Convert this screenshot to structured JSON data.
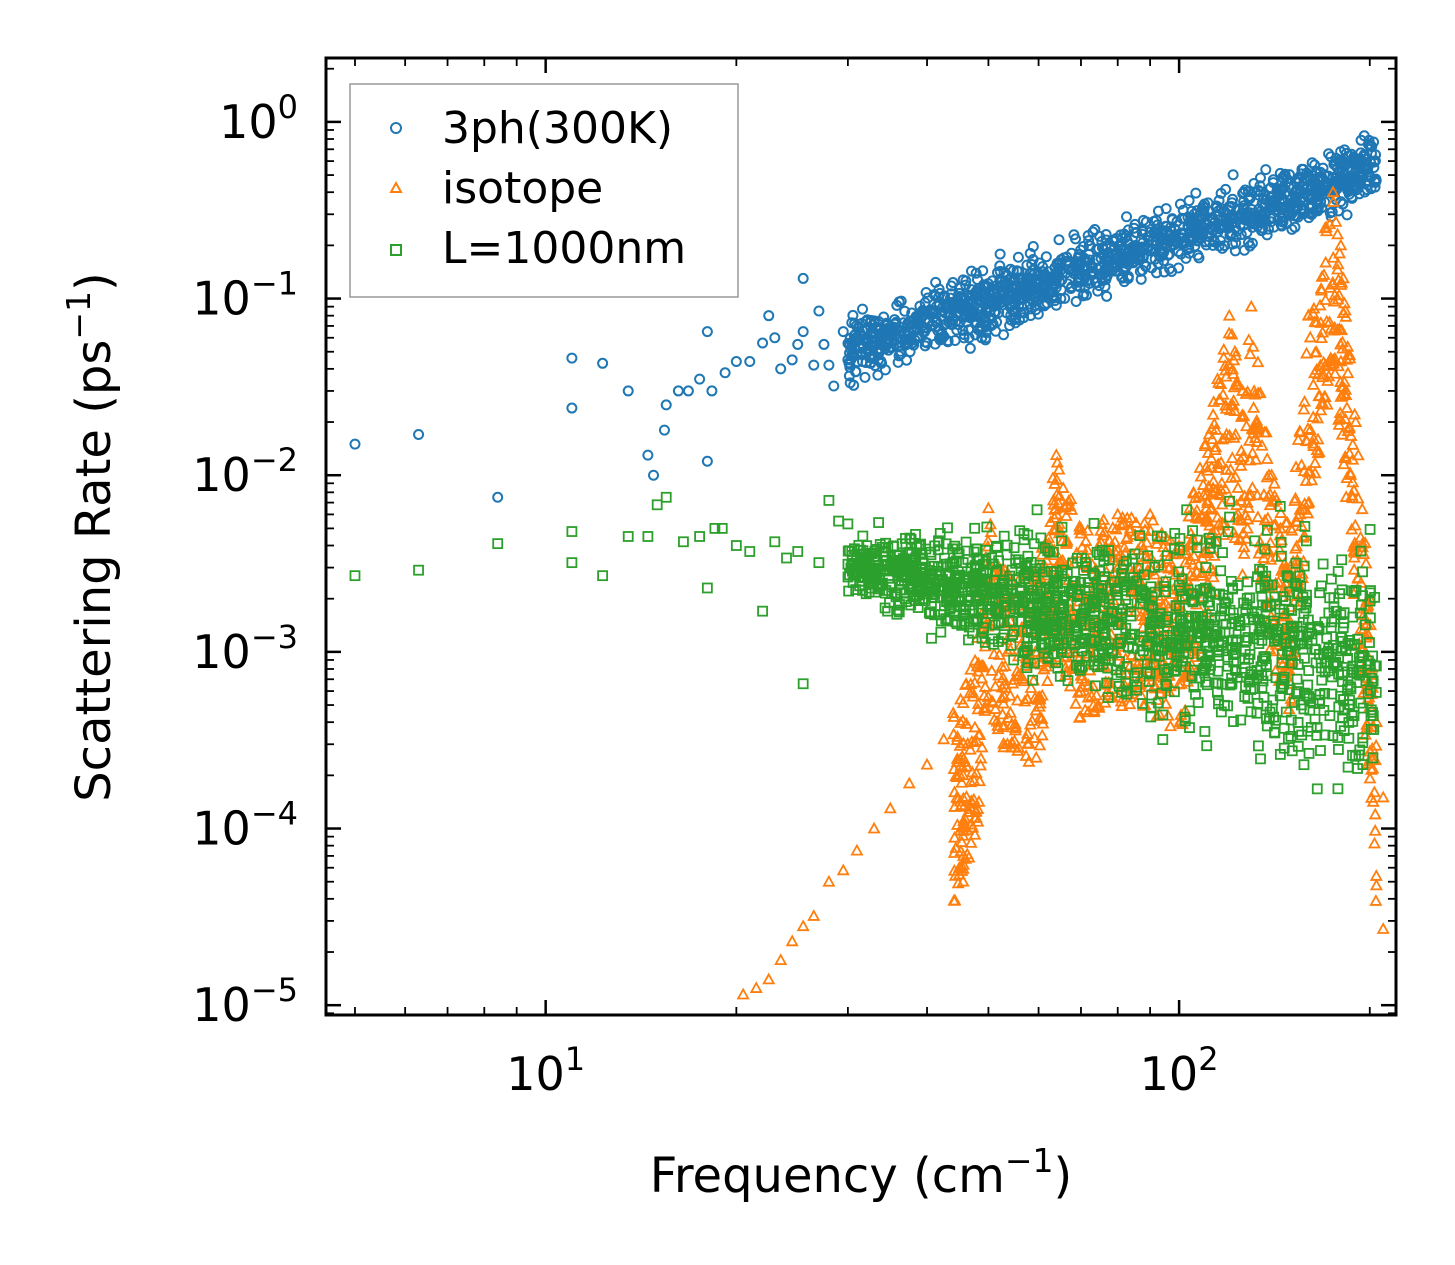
{
  "chart_data": {
    "type": "scatter",
    "xscale": "log",
    "yscale": "log",
    "xlabel": "Frequency (cm",
    "xlabel_sup": "−1",
    "xlabel_close": ")",
    "ylabel": "Scattering Rate (ps",
    "ylabel_sup": "−1",
    "ylabel_close": ")",
    "xlim": [
      4.5,
      220
    ],
    "ylim": [
      8.8e-06,
      2.3
    ],
    "x_ticks": [
      {
        "value": 10,
        "base": "10",
        "exp": "1"
      },
      {
        "value": 100,
        "base": "10",
        "exp": "2"
      }
    ],
    "y_ticks": [
      {
        "value": 1,
        "base": "10",
        "exp": "0"
      },
      {
        "value": 0.1,
        "base": "10",
        "exp": "−1"
      },
      {
        "value": 0.01,
        "base": "10",
        "exp": "−2"
      },
      {
        "value": 0.001,
        "base": "10",
        "exp": "−3"
      },
      {
        "value": 0.0001,
        "base": "10",
        "exp": "−4"
      },
      {
        "value": 1e-05,
        "base": "10",
        "exp": "−5"
      }
    ],
    "legend_position": "top-left",
    "series": [
      {
        "name": "3ph(300K)",
        "marker": "circle",
        "color": "#1f77b4",
        "points": [
          [
            5.0,
            0.015
          ],
          [
            6.3,
            0.017
          ],
          [
            8.4,
            0.0075
          ],
          [
            11,
            0.046
          ],
          [
            11,
            0.024
          ],
          [
            12.3,
            0.043
          ],
          [
            13.5,
            0.03
          ],
          [
            14.5,
            0.013
          ],
          [
            14.8,
            0.01
          ],
          [
            15.4,
            0.018
          ],
          [
            15.5,
            0.025
          ],
          [
            16.2,
            0.03
          ],
          [
            16.8,
            0.03
          ],
          [
            17.5,
            0.035
          ],
          [
            18,
            0.065
          ],
          [
            18,
            0.012
          ],
          [
            18.3,
            0.03
          ],
          [
            19.2,
            0.038
          ],
          [
            20,
            0.044
          ],
          [
            21,
            0.044
          ],
          [
            22,
            0.056
          ],
          [
            22.5,
            0.08
          ],
          [
            23,
            0.06
          ],
          [
            23.5,
            0.04
          ],
          [
            24.5,
            0.045
          ],
          [
            25,
            0.055
          ],
          [
            25.5,
            0.065
          ],
          [
            25.5,
            0.13
          ],
          [
            26.5,
            0.042
          ],
          [
            27,
            0.085
          ],
          [
            27.5,
            0.055
          ],
          [
            28,
            0.042
          ],
          [
            28.5,
            0.032
          ],
          [
            29.5,
            0.065
          ],
          [
            30,
            0.045
          ]
        ]
      },
      {
        "name": "isotope",
        "marker": "triangle",
        "color": "#ff7f0e",
        "points": [
          [
            20.5,
            1.15e-05
          ],
          [
            21.5,
            1.25e-05
          ],
          [
            22.5,
            1.4e-05
          ],
          [
            23.5,
            1.8e-05
          ],
          [
            24.5,
            2.3e-05
          ],
          [
            25.5,
            2.8e-05
          ],
          [
            26.5,
            3.2e-05
          ],
          [
            28,
            5e-05
          ],
          [
            29.5,
            5.8e-05
          ],
          [
            31,
            7.5e-05
          ],
          [
            33,
            0.0001
          ],
          [
            35,
            0.00013
          ],
          [
            37.5,
            0.00018
          ],
          [
            40,
            0.00023
          ],
          [
            42.5,
            0.00032
          ],
          [
            44,
            0.00045
          ],
          [
            46,
            0.00065
          ],
          [
            48,
            0.0012
          ],
          [
            50,
            0.0065
          ],
          [
            52,
            0.003
          ],
          [
            60,
            0.003
          ],
          [
            64,
            0.013
          ],
          [
            70,
            0.005
          ],
          [
            80,
            0.006
          ],
          [
            90,
            0.006
          ],
          [
            100,
            0.004
          ],
          [
            110,
            0.015
          ],
          [
            115,
            0.035
          ],
          [
            120,
            0.08
          ],
          [
            126,
            0.03
          ],
          [
            130,
            0.09
          ],
          [
            140,
            0.01
          ],
          [
            150,
            0.005
          ],
          [
            160,
            0.08
          ],
          [
            170,
            0.25
          ],
          [
            175,
            0.4
          ],
          [
            180,
            0.2
          ],
          [
            190,
            0.02
          ],
          [
            200,
            0.002
          ],
          [
            205,
            0.0004
          ],
          [
            210,
            0.00015
          ],
          [
            210,
            2.7e-05
          ]
        ]
      },
      {
        "name": "L=1000nm",
        "marker": "square",
        "color": "#2ca02c",
        "points": [
          [
            5.0,
            0.0027
          ],
          [
            6.3,
            0.0029
          ],
          [
            8.4,
            0.0041
          ],
          [
            11,
            0.0032
          ],
          [
            11,
            0.0048
          ],
          [
            12.3,
            0.0027
          ],
          [
            13.5,
            0.0045
          ],
          [
            14.5,
            0.0045
          ],
          [
            15,
            0.0068
          ],
          [
            15.5,
            0.0075
          ],
          [
            16.5,
            0.0042
          ],
          [
            17.5,
            0.0045
          ],
          [
            18,
            0.0023
          ],
          [
            18.5,
            0.005
          ],
          [
            19,
            0.005
          ],
          [
            20,
            0.004
          ],
          [
            21,
            0.0037
          ],
          [
            22,
            0.0017
          ],
          [
            23,
            0.0042
          ],
          [
            24,
            0.0034
          ],
          [
            25,
            0.0037
          ],
          [
            25.5,
            0.00066
          ],
          [
            27,
            0.0032
          ],
          [
            28,
            0.0072
          ],
          [
            29,
            0.0055
          ],
          [
            30,
            0.0053
          ]
        ]
      }
    ]
  }
}
